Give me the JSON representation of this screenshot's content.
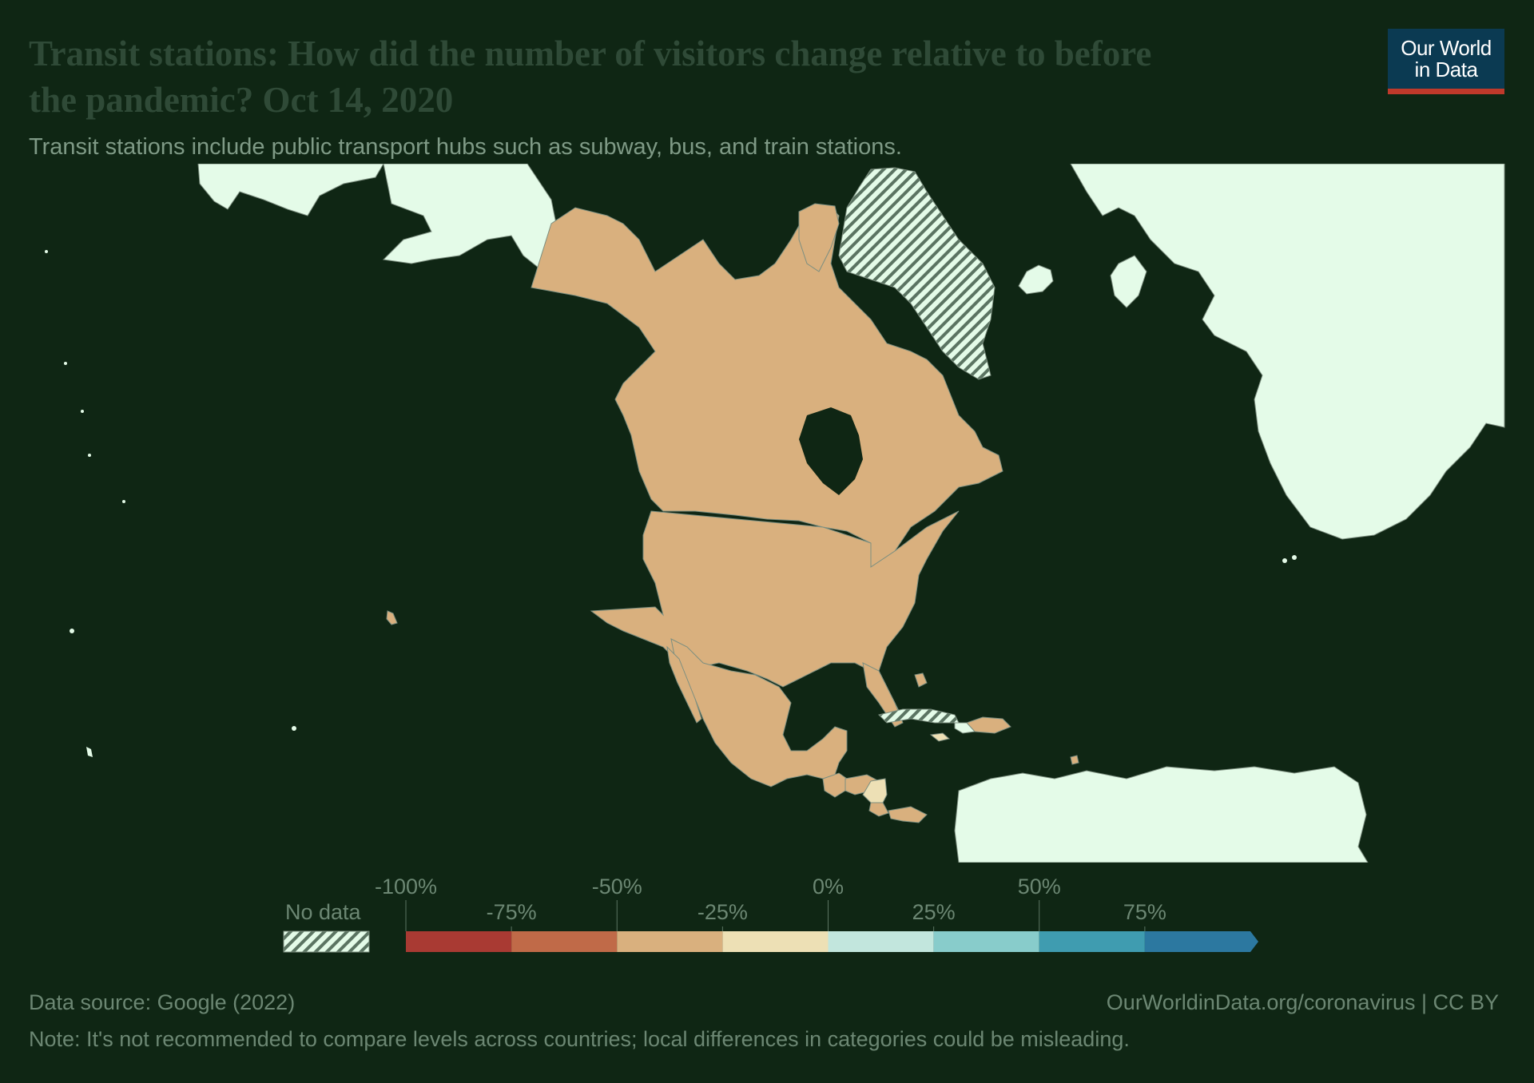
{
  "header": {
    "title": "Transit stations: How did the number of visitors change relative to before the pandemic? Oct 14, 2020",
    "subtitle": "Transit stations include public transport hubs such as subway, bus, and train stations."
  },
  "logo": {
    "line1": "Our World",
    "line2": "in Data"
  },
  "legend": {
    "no_data_label": "No data",
    "ticks_upper": [
      "-100%",
      "-50%",
      "0%",
      "50%"
    ],
    "ticks_lower": [
      "-75%",
      "-25%",
      "25%",
      "75%"
    ],
    "bins": [
      {
        "from": -100,
        "to": -75,
        "color": "#a93a33"
      },
      {
        "from": -75,
        "to": -50,
        "color": "#c06a48"
      },
      {
        "from": -50,
        "to": -25,
        "color": "#d9b07e"
      },
      {
        "from": -25,
        "to": 0,
        "color": "#ede0b5"
      },
      {
        "from": 0,
        "to": 25,
        "color": "#c2e6dd"
      },
      {
        "from": 25,
        "to": 50,
        "color": "#88cccb"
      },
      {
        "from": 50,
        "to": 75,
        "color": "#3f9cb0"
      },
      {
        "from": 75,
        "to": 100,
        "color": "#2c78a0"
      }
    ]
  },
  "colors": {
    "background": "#0f2614",
    "no_data_fill": "#e4fbe8",
    "land_border": "#7d8f80"
  },
  "map": {
    "region": "North America and Caribbean",
    "countries": [
      {
        "name": "Canada",
        "color": "#d9b07e"
      },
      {
        "name": "United States",
        "color": "#d9b07e"
      },
      {
        "name": "Mexico",
        "color": "#d9b07e"
      },
      {
        "name": "Nicaragua",
        "color": "#ede0b5"
      },
      {
        "name": "Costa Rica",
        "color": "#d9b07e"
      },
      {
        "name": "Panama",
        "color": "#d9b07e"
      },
      {
        "name": "Honduras",
        "color": "#d9b07e"
      },
      {
        "name": "Guatemala",
        "color": "#d9b07e"
      },
      {
        "name": "El Salvador",
        "color": "#d9b07e"
      },
      {
        "name": "Belize",
        "color": "#d9b07e"
      },
      {
        "name": "Dominican Republic",
        "color": "#d9b07e"
      },
      {
        "name": "Jamaica",
        "color": "#ede0b5"
      },
      {
        "name": "Bahamas",
        "color": "#d9b07e"
      },
      {
        "name": "Trinidad and Tobago",
        "color": "#d9b07e"
      },
      {
        "name": "Cuba",
        "color": "no-data"
      },
      {
        "name": "Greenland",
        "color": "no-data"
      }
    ]
  },
  "footer": {
    "source": "Data source: Google (2022)",
    "url": "OurWorldinData.org/coronavirus | CC BY",
    "note": "Note: It's not recommended to compare levels across countries; local differences in categories could be misleading."
  }
}
